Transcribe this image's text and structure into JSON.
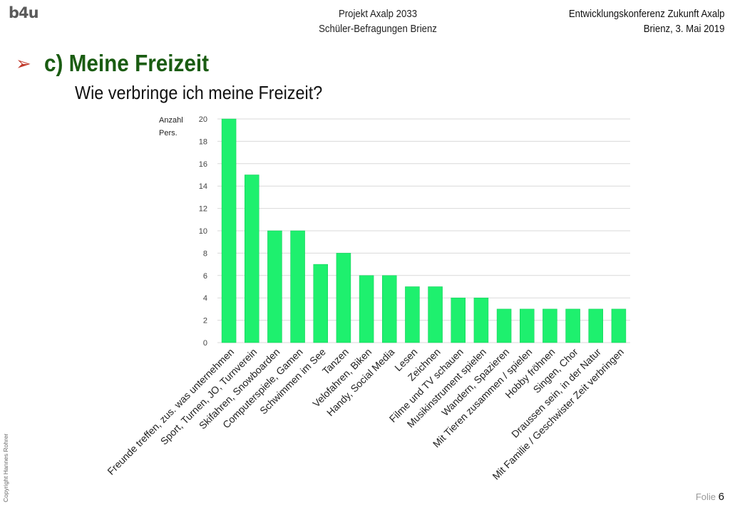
{
  "header": {
    "logo": "b4u",
    "center_line1": "Projekt Axalp 2033",
    "center_line2": "Schüler-Befragungen Brienz",
    "right_line1": "Entwicklungskonferenz Zukunft Axalp",
    "right_line2": "Brienz, 3. Mai 2019"
  },
  "slide": {
    "bullet": "➢",
    "title": "c) Meine Freizeit",
    "subtitle": "Wie verbringe ich meine Freizeit?"
  },
  "footer": {
    "copyright": "Copyright Hannes Rohrer",
    "folio_label": "Folie",
    "folio_number": "6"
  },
  "colors": {
    "bar": "#1ef06e",
    "bar_edge": "#12c957",
    "grid": "#d9d9d9",
    "title": "#1a5c12",
    "bullet": "#c0392b"
  },
  "chart_data": {
    "type": "bar",
    "ylabel_line1": "Anzahl",
    "ylabel_line2": "Pers.",
    "ylim": [
      0,
      20
    ],
    "yticks": [
      0,
      2,
      4,
      6,
      8,
      10,
      12,
      14,
      16,
      18,
      20
    ],
    "grid": true,
    "categories": [
      "Freunde treffen, zus. was unternehmen",
      "Sport, Turnen, JO, Turnverein",
      "Skifahren, Snowboarden",
      "Computerspiele, Gamen",
      "Schwimmen im See",
      "Tanzen",
      "Velofahren, Biken",
      "Handy, Social Media",
      "Lesen",
      "Zeichnen",
      "Filme und TV schauen",
      "Musikinstrument spielen",
      "Wandern, Spazieren",
      "Mit Tieren zusammen / spielen",
      "Hobby fröhnen",
      "Singen, Chor",
      "Draussen sein, in der Natur",
      "Mit Familie / Geschwister Zeit verbringen"
    ],
    "values": [
      20,
      15,
      10,
      10,
      7,
      8,
      6,
      6,
      5,
      5,
      4,
      4,
      3,
      3,
      3,
      3,
      3,
      3
    ]
  }
}
